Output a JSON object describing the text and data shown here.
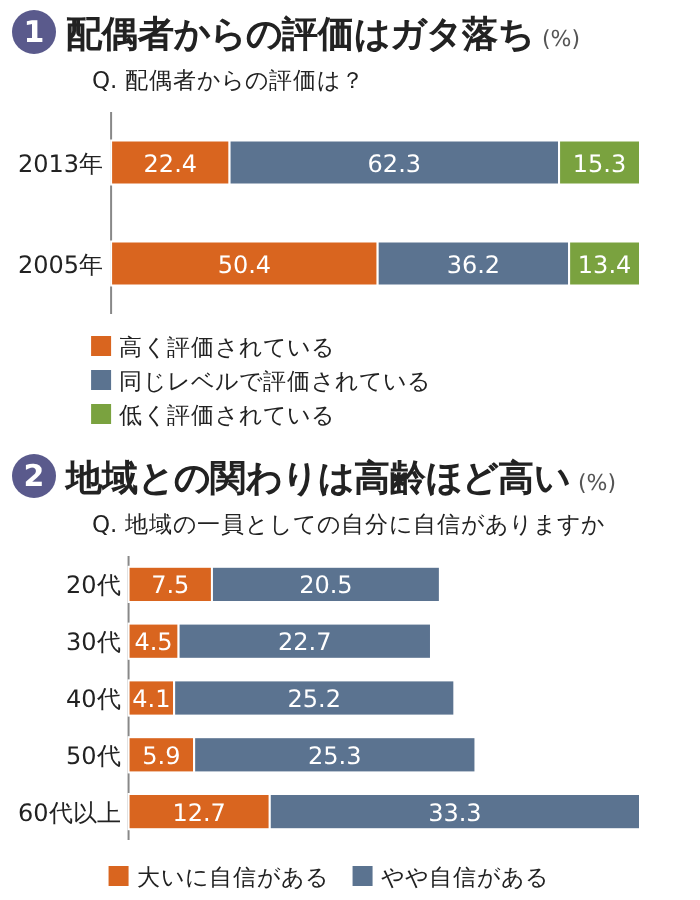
{
  "chart_data": [
    {
      "type": "bar",
      "orientation": "horizontal",
      "stacked": true,
      "data_labels": true,
      "legend": "bottom left",
      "title": "配偶者からの評価はガタ落ち",
      "subtitle": "Q. 配偶者からの評価は？",
      "annotations": [
        "1",
        "(%)"
      ],
      "categories": [
        "2013年",
        "2005年"
      ],
      "series": [
        {
          "name": "高く評価されている",
          "color": "#d9651f",
          "values": [
            22.4,
            50.4
          ]
        },
        {
          "name": "同じレベルで評価されている",
          "color": "#5b7390",
          "values": [
            62.3,
            36.2
          ]
        },
        {
          "name": "低く評価されている",
          "color": "#7aa23f",
          "values": [
            15.3,
            13.4
          ]
        }
      ]
    },
    {
      "type": "bar",
      "orientation": "horizontal",
      "stacked": true,
      "data_labels": true,
      "legend": "bottom left",
      "title": "地域との関わりは高齢ほど高い",
      "subtitle": "Q. 地域の一員としての自分に自信がありますか",
      "annotations": [
        "2",
        "(%)"
      ],
      "categories": [
        "20代",
        "30代",
        "40代",
        "50代",
        "60代以上"
      ],
      "series": [
        {
          "name": "大いに自信がある",
          "color": "#d9651f",
          "values": [
            7.5,
            4.5,
            4.1,
            5.9,
            12.7
          ]
        },
        {
          "name": "やや自信がある",
          "color": "#5b7390",
          "values": [
            20.5,
            22.7,
            25.2,
            25.3,
            33.3
          ]
        }
      ]
    }
  ]
}
